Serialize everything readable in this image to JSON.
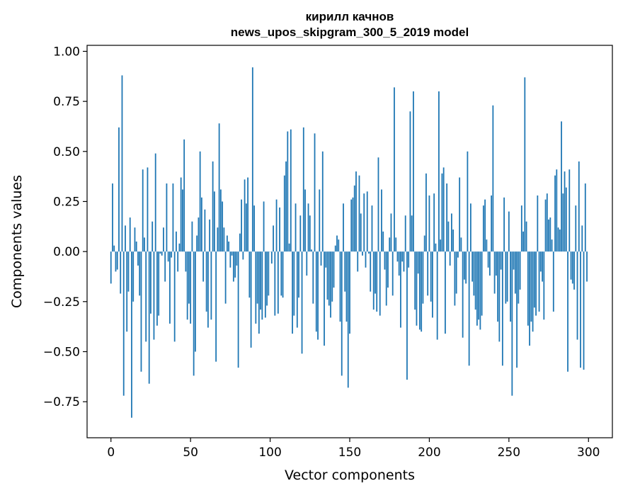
{
  "chart_data": {
    "type": "bar",
    "title_lines": [
      "кирилл качнов",
      "news_upos_skipgram_300_5_2019 model"
    ],
    "xlabel": "Vector components",
    "ylabel": "Components values",
    "xlim": [
      -15,
      315
    ],
    "ylim": [
      -0.93,
      1.03
    ],
    "x_ticks": [
      0,
      50,
      100,
      150,
      200,
      250,
      300
    ],
    "x_tick_labels": [
      "0",
      "50",
      "100",
      "150",
      "200",
      "250",
      "300"
    ],
    "y_ticks": [
      -0.75,
      -0.5,
      -0.25,
      0.0,
      0.25,
      0.5,
      0.75,
      1.0
    ],
    "y_tick_labels": [
      "−0.75",
      "−0.50",
      "−0.25",
      "0.00",
      "0.25",
      "0.50",
      "0.75",
      "1.00"
    ],
    "bar_color": "#1f77b4",
    "grid": false,
    "values": [
      -0.16,
      0.34,
      0.03,
      -0.1,
      -0.09,
      0.62,
      -0.21,
      0.88,
      -0.72,
      0.13,
      -0.4,
      -0.2,
      0.17,
      -0.83,
      -0.25,
      0.12,
      0.05,
      -0.07,
      -0.22,
      -0.6,
      0.41,
      0.07,
      -0.45,
      0.42,
      -0.66,
      -0.31,
      0.15,
      -0.44,
      0.49,
      -0.37,
      -0.32,
      -0.01,
      -0.02,
      0.12,
      -0.15,
      0.34,
      -0.05,
      -0.36,
      -0.03,
      0.34,
      -0.45,
      0.1,
      -0.1,
      0.04,
      0.37,
      0.31,
      0.56,
      -0.1,
      -0.34,
      -0.26,
      -0.36,
      0.15,
      -0.62,
      -0.5,
      0.08,
      0.17,
      0.5,
      0.27,
      -0.15,
      0.21,
      -0.3,
      -0.38,
      0.16,
      -0.34,
      0.45,
      0.3,
      -0.55,
      0.12,
      0.64,
      0.31,
      0.25,
      0.12,
      -0.26,
      0.08,
      0.05,
      -0.08,
      -0.02,
      -0.15,
      -0.13,
      -0.07,
      -0.58,
      0.09,
      0.26,
      -0.04,
      0.36,
      0.24,
      0.37,
      -0.23,
      -0.48,
      0.92,
      0.23,
      -0.36,
      -0.26,
      -0.41,
      -0.29,
      -0.34,
      0.25,
      -0.33,
      -0.27,
      -0.22,
      0.0,
      -0.06,
      0.13,
      -0.32,
      0.26,
      -0.31,
      0.22,
      -0.22,
      -0.23,
      0.38,
      0.45,
      0.6,
      0.04,
      0.61,
      -0.41,
      -0.32,
      0.24,
      -0.38,
      -0.23,
      0.18,
      -0.51,
      0.62,
      0.31,
      -0.12,
      0.24,
      0.18,
      0.01,
      -0.26,
      0.59,
      -0.4,
      -0.44,
      0.31,
      -0.07,
      0.5,
      -0.47,
      -0.08,
      -0.24,
      -0.27,
      -0.33,
      -0.25,
      -0.18,
      0.03,
      0.08,
      0.06,
      -0.35,
      -0.62,
      0.24,
      -0.2,
      -0.35,
      -0.68,
      -0.41,
      0.26,
      0.27,
      0.33,
      0.4,
      -0.1,
      0.38,
      0.19,
      -0.02,
      0.29,
      -0.08,
      0.3,
      -0.01,
      -0.2,
      0.23,
      -0.29,
      -0.21,
      -0.3,
      0.47,
      -0.32,
      0.31,
      0.1,
      -0.09,
      -0.27,
      -0.18,
      0.07,
      0.19,
      -0.22,
      0.82,
      0.07,
      -0.05,
      -0.12,
      -0.38,
      -0.05,
      -0.1,
      0.18,
      -0.64,
      -0.08,
      0.7,
      0.18,
      0.8,
      -0.29,
      -0.37,
      -0.11,
      -0.39,
      -0.4,
      -0.26,
      0.08,
      0.39,
      -0.22,
      0.28,
      -0.25,
      -0.33,
      0.29,
      0.04,
      -0.44,
      0.8,
      0.06,
      0.39,
      0.42,
      -0.41,
      0.34,
      0.15,
      -0.07,
      0.19,
      0.11,
      -0.27,
      -0.21,
      -0.03,
      0.37,
      0.07,
      -0.43,
      -0.14,
      -0.16,
      0.5,
      -0.57,
      0.24,
      -0.15,
      -0.22,
      -0.29,
      -0.37,
      -0.34,
      -0.39,
      -0.32,
      0.23,
      0.26,
      0.06,
      -0.08,
      -0.12,
      0.28,
      0.73,
      -0.21,
      -0.12,
      -0.35,
      -0.45,
      -0.09,
      -0.57,
      0.27,
      -0.26,
      -0.25,
      0.2,
      -0.35,
      -0.72,
      -0.09,
      -0.21,
      -0.58,
      -0.26,
      -0.19,
      0.23,
      0.1,
      0.87,
      0.15,
      -0.37,
      -0.47,
      -0.35,
      -0.4,
      -0.28,
      -0.32,
      0.28,
      -0.3,
      -0.1,
      -0.15,
      -0.34,
      0.26,
      0.29,
      0.16,
      0.17,
      0.06,
      -0.3,
      0.38,
      0.41,
      0.12,
      0.11,
      0.65,
      0.29,
      0.4,
      0.32,
      -0.6,
      0.41,
      -0.14,
      -0.16,
      -0.19,
      0.23,
      -0.44,
      0.45,
      -0.58,
      0.13,
      -0.59,
      0.34,
      -0.15
    ]
  }
}
